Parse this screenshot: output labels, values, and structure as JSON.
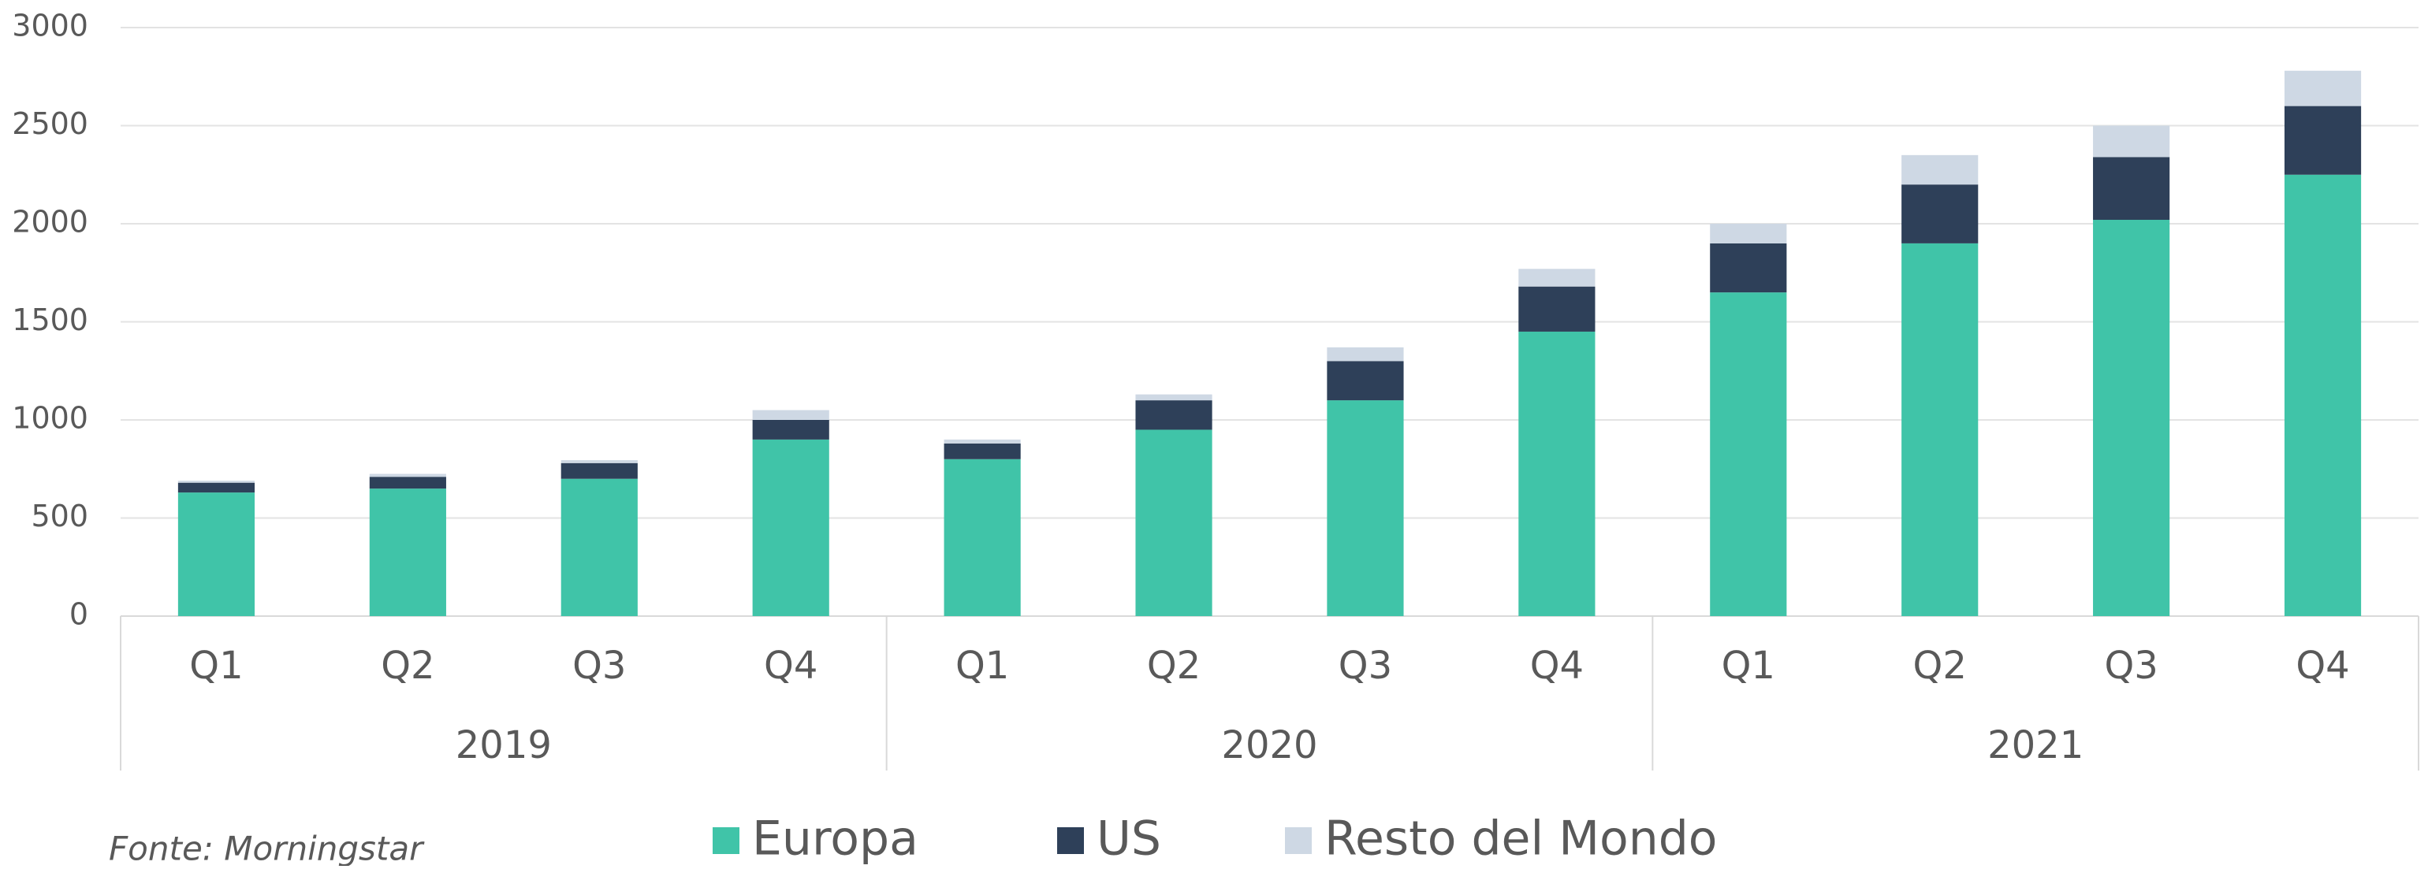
{
  "chart_data": {
    "type": "stacked_bar",
    "categories": [
      "Q1",
      "Q2",
      "Q3",
      "Q4",
      "Q1",
      "Q2",
      "Q3",
      "Q4",
      "Q1",
      "Q2",
      "Q3",
      "Q4"
    ],
    "groups": [
      "2019",
      "2020",
      "2021"
    ],
    "series": [
      {
        "name": "Europa",
        "color": "#40c4a8",
        "values": [
          630,
          650,
          700,
          900,
          800,
          950,
          1100,
          1450,
          1650,
          1900,
          2020,
          2250
        ]
      },
      {
        "name": "US",
        "color": "#2e4059",
        "values": [
          50,
          60,
          80,
          100,
          80,
          150,
          200,
          230,
          250,
          300,
          320,
          350
        ]
      },
      {
        "name": "Resto del Mondo",
        "color": "#ced8e4",
        "values": [
          10,
          15,
          15,
          50,
          20,
          30,
          70,
          90,
          100,
          150,
          160,
          180
        ]
      }
    ],
    "ylim": [
      0,
      3000
    ],
    "yticks": [
      0,
      500,
      1000,
      1500,
      2000,
      2500,
      3000
    ],
    "grid": true,
    "source": "Fonte: Morningstar"
  }
}
